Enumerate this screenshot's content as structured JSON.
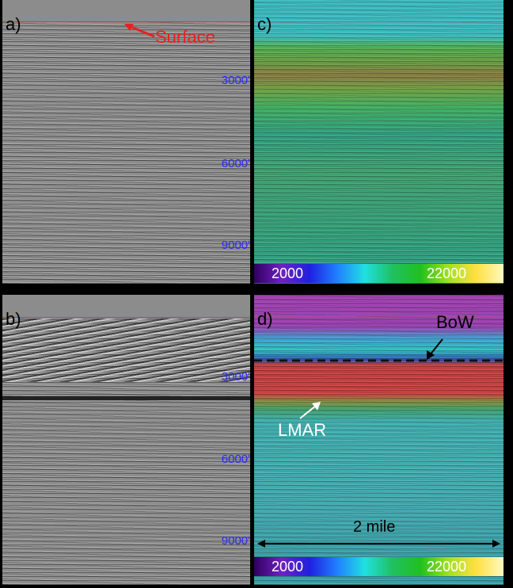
{
  "panels": [
    {
      "label": "a)",
      "depth_labels": [
        "3000'",
        "6000'",
        "9000'"
      ],
      "annotation": "Surface"
    },
    {
      "label": "c)",
      "colorbar": {
        "min_label": "2000",
        "max_label": "22000"
      }
    },
    {
      "label": "b)",
      "depth_labels": [
        "3000'",
        "6000'",
        "9000'"
      ]
    },
    {
      "label": "d)",
      "annotations": {
        "bow": "BoW",
        "lmar": "LMAR",
        "scale": "2 mile"
      },
      "colorbar": {
        "min_label": "2000",
        "max_label": "22000"
      }
    }
  ]
}
